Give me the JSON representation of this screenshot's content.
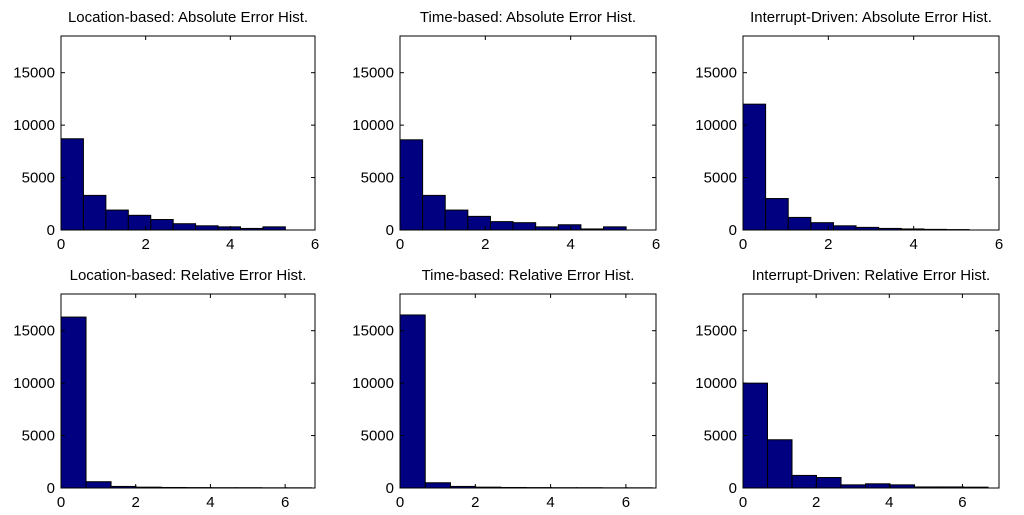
{
  "colors": {
    "bar_fill": "#000080",
    "bar_edge": "#000000",
    "axes": "#000000",
    "background": "#ffffff"
  },
  "chart_data": [
    {
      "type": "bar",
      "title": "Location-based: Absolute Error Hist.",
      "xlim": [
        0,
        6
      ],
      "ylim": [
        0,
        18500
      ],
      "xticks": [
        0,
        2,
        4,
        6
      ],
      "yticks": [
        0,
        5000,
        10000,
        15000
      ],
      "bin_edges": [
        0,
        0.53,
        1.06,
        1.59,
        2.12,
        2.65,
        3.18,
        3.71,
        4.24,
        4.77,
        5.3
      ],
      "values": [
        8700,
        3300,
        1900,
        1400,
        1000,
        600,
        400,
        300,
        150,
        300
      ],
      "grid": false
    },
    {
      "type": "bar",
      "title": "Time-based: Absolute Error Hist.",
      "xlim": [
        0,
        6
      ],
      "ylim": [
        0,
        18500
      ],
      "xticks": [
        0,
        2,
        4,
        6
      ],
      "yticks": [
        0,
        5000,
        10000,
        15000
      ],
      "bin_edges": [
        0,
        0.53,
        1.06,
        1.59,
        2.12,
        2.65,
        3.18,
        3.71,
        4.24,
        4.77,
        5.3
      ],
      "values": [
        8600,
        3300,
        1900,
        1300,
        800,
        700,
        300,
        500,
        100,
        300
      ],
      "grid": false
    },
    {
      "type": "bar",
      "title": "Interrupt-Driven: Absolute Error Hist.",
      "xlim": [
        0,
        6
      ],
      "ylim": [
        0,
        18500
      ],
      "xticks": [
        0,
        2,
        4,
        6
      ],
      "yticks": [
        0,
        5000,
        10000,
        15000
      ],
      "bin_edges": [
        0,
        0.53,
        1.06,
        1.59,
        2.12,
        2.65,
        3.18,
        3.71,
        4.24,
        4.77,
        5.3
      ],
      "values": [
        12000,
        3000,
        1200,
        700,
        400,
        250,
        150,
        100,
        60,
        40
      ],
      "grid": false
    },
    {
      "type": "bar",
      "title": "Location-based: Relative Error Hist.",
      "xlim": [
        0,
        6.8
      ],
      "ylim": [
        0,
        18500
      ],
      "xticks": [
        0,
        2,
        4,
        6
      ],
      "yticks": [
        0,
        5000,
        10000,
        15000
      ],
      "bin_edges": [
        0,
        0.67,
        1.34,
        2.01,
        2.68,
        3.35,
        4.02,
        4.69,
        5.36,
        6.03,
        6.7
      ],
      "values": [
        16300,
        600,
        150,
        80,
        50,
        40,
        30,
        30,
        20,
        20
      ],
      "grid": false
    },
    {
      "type": "bar",
      "title": "Time-based: Relative Error Hist.",
      "xlim": [
        0,
        6.8
      ],
      "ylim": [
        0,
        18500
      ],
      "xticks": [
        0,
        2,
        4,
        6
      ],
      "yticks": [
        0,
        5000,
        10000,
        15000
      ],
      "bin_edges": [
        0,
        0.67,
        1.34,
        2.01,
        2.68,
        3.35,
        4.02,
        4.69,
        5.36,
        6.03,
        6.7
      ],
      "values": [
        16500,
        500,
        150,
        80,
        50,
        40,
        30,
        30,
        20,
        20
      ],
      "grid": false
    },
    {
      "type": "bar",
      "title": "Interrupt-Driven: Relative Error Hist.",
      "xlim": [
        0,
        7
      ],
      "ylim": [
        0,
        18500
      ],
      "xticks": [
        0,
        2,
        4,
        6
      ],
      "yticks": [
        0,
        5000,
        10000,
        15000
      ],
      "bin_edges": [
        0,
        0.67,
        1.34,
        2.01,
        2.68,
        3.35,
        4.02,
        4.69,
        5.36,
        6.03,
        6.7
      ],
      "values": [
        10000,
        4600,
        1200,
        1000,
        300,
        400,
        300,
        100,
        100,
        80
      ],
      "grid": false
    }
  ]
}
